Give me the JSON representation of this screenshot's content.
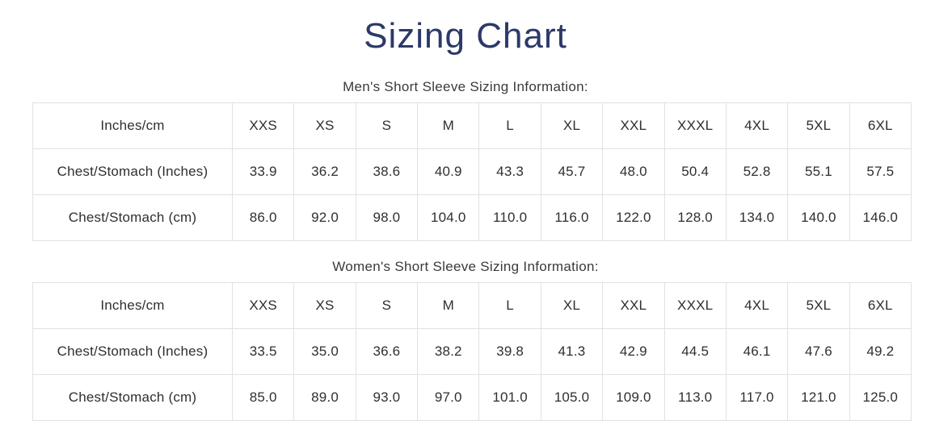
{
  "page": {
    "title": "Sizing Chart"
  },
  "colors": {
    "title_navy": "#2c3968",
    "body_text": "#3a3a3a",
    "cell_text": "#2f2f2f",
    "table_border": "#e1e1e1",
    "background": "#ffffff"
  },
  "sections": [
    {
      "heading": "Men's Short Sleeve Sizing Information:",
      "table": {
        "corner_label": "Inches/cm",
        "sizes": [
          "XXS",
          "XS",
          "S",
          "M",
          "L",
          "XL",
          "XXL",
          "XXXL",
          "4XL",
          "5XL",
          "6XL"
        ],
        "rows": [
          {
            "label": "Chest/Stomach (Inches)",
            "values": [
              "33.9",
              "36.2",
              "38.6",
              "40.9",
              "43.3",
              "45.7",
              "48.0",
              "50.4",
              "52.8",
              "55.1",
              "57.5"
            ]
          },
          {
            "label": "Chest/Stomach (cm)",
            "values": [
              "86.0",
              "92.0",
              "98.0",
              "104.0",
              "110.0",
              "116.0",
              "122.0",
              "128.0",
              "134.0",
              "140.0",
              "146.0"
            ]
          }
        ]
      }
    },
    {
      "heading": "Women's Short Sleeve Sizing Information:",
      "table": {
        "corner_label": "Inches/cm",
        "sizes": [
          "XXS",
          "XS",
          "S",
          "M",
          "L",
          "XL",
          "XXL",
          "XXXL",
          "4XL",
          "5XL",
          "6XL"
        ],
        "rows": [
          {
            "label": "Chest/Stomach (Inches)",
            "values": [
              "33.5",
              "35.0",
              "36.6",
              "38.2",
              "39.8",
              "41.3",
              "42.9",
              "44.5",
              "46.1",
              "47.6",
              "49.2"
            ]
          },
          {
            "label": "Chest/Stomach (cm)",
            "values": [
              "85.0",
              "89.0",
              "93.0",
              "97.0",
              "101.0",
              "105.0",
              "109.0",
              "113.0",
              "117.0",
              "121.0",
              "125.0"
            ]
          }
        ]
      }
    }
  ],
  "chart_data": [
    {
      "type": "table",
      "title": "Men's Short Sleeve Sizing Information:",
      "columns": [
        "Inches/cm",
        "XXS",
        "XS",
        "S",
        "M",
        "L",
        "XL",
        "XXL",
        "XXXL",
        "4XL",
        "5XL",
        "6XL"
      ],
      "rows": [
        [
          "Chest/Stomach (Inches)",
          33.9,
          36.2,
          38.6,
          40.9,
          43.3,
          45.7,
          48.0,
          50.4,
          52.8,
          55.1,
          57.5
        ],
        [
          "Chest/Stomach (cm)",
          86.0,
          92.0,
          98.0,
          104.0,
          110.0,
          116.0,
          122.0,
          128.0,
          134.0,
          140.0,
          146.0
        ]
      ]
    },
    {
      "type": "table",
      "title": "Women's Short Sleeve Sizing Information:",
      "columns": [
        "Inches/cm",
        "XXS",
        "XS",
        "S",
        "M",
        "L",
        "XL",
        "XXL",
        "XXXL",
        "4XL",
        "5XL",
        "6XL"
      ],
      "rows": [
        [
          "Chest/Stomach (Inches)",
          33.5,
          35.0,
          36.6,
          38.2,
          39.8,
          41.3,
          42.9,
          44.5,
          46.1,
          47.6,
          49.2
        ],
        [
          "Chest/Stomach (cm)",
          85.0,
          89.0,
          93.0,
          97.0,
          101.0,
          105.0,
          109.0,
          113.0,
          117.0,
          121.0,
          125.0
        ]
      ]
    }
  ]
}
